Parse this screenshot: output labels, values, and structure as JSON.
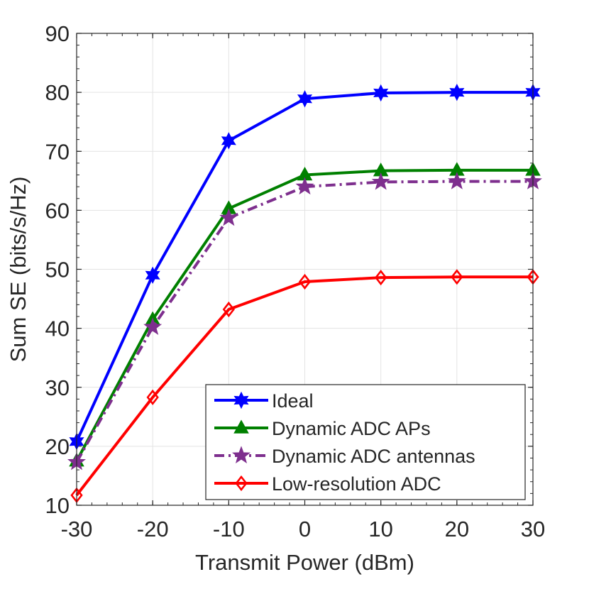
{
  "chart_data": {
    "type": "line",
    "title": "",
    "xlabel": "Transmit Power (dBm)",
    "ylabel": "Sum SE (bits/s/Hz)",
    "xlim": [
      -30,
      30
    ],
    "ylim": [
      10,
      90
    ],
    "xticks": [
      "-30",
      "-20",
      "-10",
      "0",
      "10",
      "20",
      "30"
    ],
    "yticks": [
      "10",
      "20",
      "30",
      "40",
      "50",
      "60",
      "70",
      "80",
      "90"
    ],
    "grid": true,
    "legend_position": "bottom-right",
    "x": [
      -30,
      -20,
      -10,
      0,
      10,
      20,
      30
    ],
    "series": [
      {
        "name": "Ideal",
        "color": "#0000ff",
        "marker": "hexagram",
        "dash": "solid",
        "values": [
          20.8,
          49.0,
          71.8,
          78.9,
          79.9,
          80.0,
          80.0
        ]
      },
      {
        "name": "Dynamic ADC APs",
        "color": "#008000",
        "marker": "triangle",
        "dash": "solid",
        "values": [
          17.5,
          41.5,
          60.3,
          66.0,
          66.7,
          66.8,
          66.8
        ]
      },
      {
        "name": "Dynamic ADC antennas",
        "color": "#7e2f8e",
        "marker": "pentagram",
        "dash": "dashdot",
        "values": [
          17.3,
          40.2,
          58.7,
          64.0,
          64.8,
          64.9,
          64.9
        ]
      },
      {
        "name": "Low-resolution ADC",
        "color": "#ff0000",
        "marker": "diamond",
        "dash": "solid",
        "values": [
          11.7,
          28.3,
          43.2,
          47.9,
          48.6,
          48.7,
          48.7
        ]
      }
    ]
  }
}
